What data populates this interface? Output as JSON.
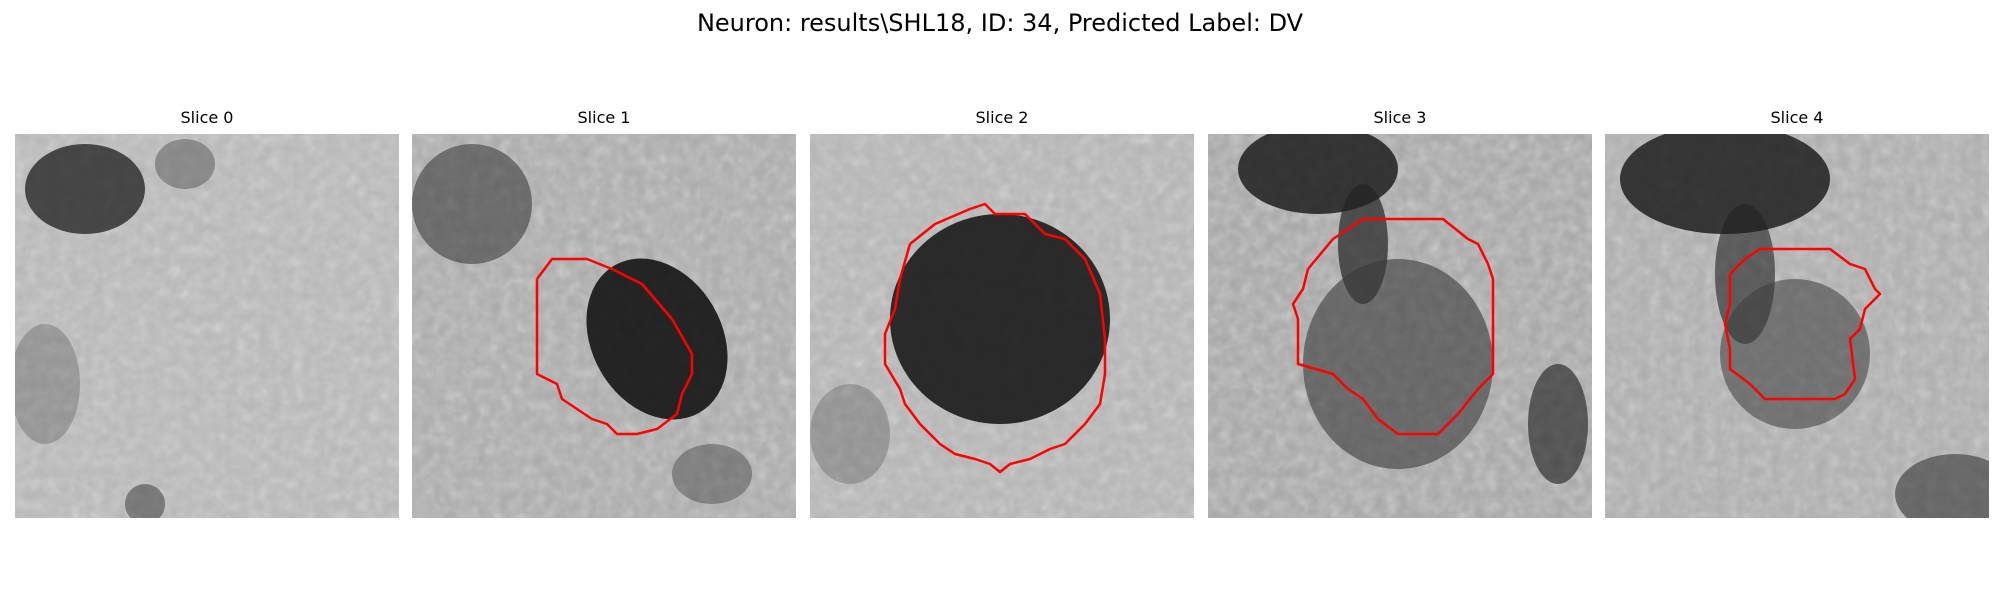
{
  "suptitle": "Neuron: results\\SHL18, ID: 34, Predicted Label: DV",
  "colors": {
    "contour": "#ff0000",
    "background": "#ffffff"
  },
  "panels": [
    {
      "title": "Slice 0",
      "has_contour": false
    },
    {
      "title": "Slice 1",
      "has_contour": true
    },
    {
      "title": "Slice 2",
      "has_contour": true
    },
    {
      "title": "Slice 3",
      "has_contour": true
    },
    {
      "title": "Slice 4",
      "has_contour": true
    }
  ]
}
